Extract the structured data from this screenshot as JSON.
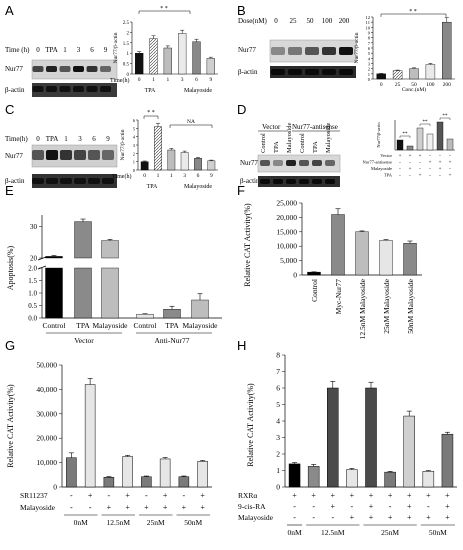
{
  "figure": {
    "panel_letters": [
      "A",
      "B",
      "C",
      "D",
      "E",
      "F",
      "G",
      "H"
    ]
  },
  "panelA": {
    "time_label": "Time (h)",
    "lanes": [
      "0",
      "TPA",
      "1",
      "3",
      "6",
      "9"
    ],
    "blot_rows": [
      "Nur77",
      "β-actin"
    ],
    "chart_data": {
      "type": "bar",
      "ylabel": "Nur77/β-actin",
      "ylim": [
        0,
        2.5
      ],
      "yticks": [
        "0",
        "0.5",
        "1",
        "1.5",
        "2",
        "2.5"
      ],
      "categories": [
        "0",
        "1",
        "1",
        "3",
        "6",
        "9"
      ],
      "values": [
        1.0,
        1.7,
        1.25,
        1.95,
        1.55,
        0.75
      ],
      "xlabel": "Time(h)",
      "group_labels": [
        "TPA",
        "Malayoside"
      ],
      "sig": "* *"
    }
  },
  "panelB": {
    "dose_label": "Dose(nM)",
    "lanes": [
      "0",
      "25",
      "50",
      "100",
      "200"
    ],
    "blot_rows": [
      "Nur77",
      "β-actin"
    ],
    "chart_data": {
      "type": "bar",
      "ylabel": "Nur77/β-actin",
      "ylim": [
        0,
        12
      ],
      "yticks": [
        "0",
        "1",
        "2",
        "3",
        "4",
        "5",
        "6",
        "7",
        "8",
        "9",
        "10",
        "11",
        "12"
      ],
      "categories": [
        "0",
        "25",
        "50",
        "100",
        "200"
      ],
      "values": [
        1.0,
        1.6,
        2.0,
        2.8,
        11.0
      ],
      "xlabel": "Conc.(nM)",
      "sig": "* *"
    }
  },
  "panelC": {
    "time_label": "Time(h)",
    "lanes": [
      "0",
      "TPA",
      "1",
      "3",
      "6",
      "9"
    ],
    "blot_rows": [
      "Nur77",
      "β-actin"
    ],
    "chart_data": {
      "type": "bar",
      "ylabel": "Nur77/β-actin",
      "ylim": [
        0,
        6
      ],
      "yticks": [
        "0",
        "1",
        "2",
        "3",
        "4",
        "5",
        "6"
      ],
      "categories": [
        "0",
        "1",
        "1",
        "3",
        "6",
        "9"
      ],
      "values": [
        1.0,
        5.2,
        2.4,
        2.1,
        1.4,
        1.1
      ],
      "xlabel": "Time(h)",
      "group_labels": [
        "TPA",
        "Malayoside"
      ],
      "sig": "* *",
      "ns": "NA"
    }
  },
  "panelD": {
    "vector_label": "Vector",
    "antisense_label": "Nur77-antisense",
    "lanes": [
      "Control",
      "TPA",
      "Malayoside",
      "Control",
      "TPA",
      "Malayoside"
    ],
    "blot_rows": [
      "Nur77",
      "β-actin"
    ],
    "chart_data": {
      "type": "bar",
      "ylabel": "Nur77/β-actin",
      "ylim": [
        0,
        3
      ],
      "values": [
        1.0,
        0.4,
        2.2,
        1.6,
        2.8,
        1.1
      ],
      "row_labels": [
        "Vector",
        "Nur77-antisense",
        "Malayoside",
        "TPA"
      ],
      "row_signs": [
        [
          "+",
          "+",
          "+",
          "-",
          "-",
          "-"
        ],
        [
          "-",
          "-",
          "-",
          "+",
          "+",
          "+"
        ],
        [
          "-",
          "+",
          "-",
          "-",
          "+",
          "-"
        ],
        [
          "-",
          "-",
          "+",
          "-",
          "-",
          "+"
        ]
      ],
      "sig": "**"
    }
  },
  "panelE": {
    "chart_data": {
      "type": "bar",
      "ylabel": "Apoptosis(%)",
      "yticks_upper": [
        "20",
        "30"
      ],
      "yticks_lower": [
        "0.0",
        "0.5",
        "1.0",
        "1.5",
        "2.0"
      ],
      "categories": [
        "Control",
        "TPA",
        "Malayoside",
        "Control",
        "TPA",
        "Malayoside"
      ],
      "values": [
        20.5,
        31.5,
        25.5,
        0.15,
        0.35,
        0.72
      ],
      "errors": [
        0.3,
        0.8,
        0.4,
        0.02,
        0.12,
        0.25
      ],
      "group_labels": [
        "Vector",
        "Anti-Nur77"
      ]
    }
  },
  "panelF": {
    "chart_data": {
      "type": "bar",
      "ylabel": "Relative CAT Activity(%)",
      "ylim": [
        0,
        25000
      ],
      "yticks": [
        "0",
        "5,000",
        "10,000",
        "15,000",
        "20,000",
        "25,000"
      ],
      "categories": [
        "Control",
        "Myc-Nur77",
        "12.5nM Malayoside",
        "25nM Malayoside",
        "50nM Malayoside"
      ],
      "values": [
        1000,
        21000,
        15000,
        12000,
        11000
      ],
      "errors": [
        100,
        2000,
        300,
        300,
        800
      ]
    }
  },
  "panelG": {
    "chart_data": {
      "type": "bar",
      "ylabel": "Relative CAT Activity(%)",
      "ylim": [
        0,
        50000
      ],
      "yticks": [
        "0",
        "10,000",
        "20,000",
        "30,000",
        "40,000",
        "50,000"
      ],
      "values": [
        12000,
        42000,
        4000,
        12500,
        4200,
        11500,
        4200,
        10500
      ],
      "errors": [
        2000,
        2500,
        300,
        500,
        300,
        600,
        300,
        400
      ],
      "row_labels": [
        "SR11237",
        "Malayoside"
      ],
      "row_signs": [
        [
          "-",
          "+",
          "-",
          "+",
          "-",
          "+",
          "-",
          "+"
        ],
        [
          "-",
          "-",
          "+",
          "+",
          "+",
          "+",
          "+",
          "+"
        ]
      ],
      "group_labels": [
        "0nM",
        "12.5nM",
        "25nM",
        "50nM"
      ]
    }
  },
  "panelH": {
    "chart_data": {
      "type": "bar",
      "ylabel": "Relative CAT Activity(%)",
      "ylim": [
        0,
        8
      ],
      "yticks": [
        "0",
        "1",
        "2",
        "3",
        "4",
        "5",
        "6",
        "7",
        "8"
      ],
      "values": [
        1.4,
        1.25,
        6.0,
        1.05,
        6.0,
        0.9,
        4.3,
        0.95,
        3.2
      ],
      "errors": [
        0.08,
        0.12,
        0.4,
        0.08,
        0.35,
        0.05,
        0.3,
        0.05,
        0.12
      ],
      "row_labels": [
        "RXRα",
        "9-cis-RA",
        "Malayoside"
      ],
      "row_signs": [
        [
          "+",
          "+",
          "+",
          "+",
          "+",
          "+",
          "+",
          "+",
          "+"
        ],
        [
          "-",
          "-",
          "+",
          "-",
          "+",
          "-",
          "+",
          "-",
          "+"
        ],
        [
          "-",
          "-",
          "-",
          "+",
          "+",
          "+",
          "+",
          "+",
          "+"
        ]
      ],
      "group_labels": [
        "0nM",
        "12.5nM",
        "25nM",
        "50nM"
      ]
    }
  }
}
